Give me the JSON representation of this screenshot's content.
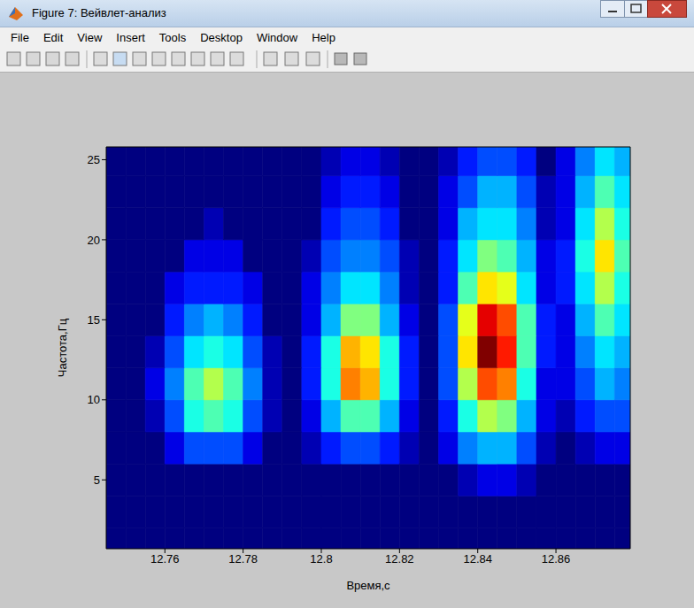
{
  "window": {
    "title": "Figure 7: Вейвлет-анализ",
    "menu": [
      "File",
      "Edit",
      "View",
      "Insert",
      "Tools",
      "Desktop",
      "Window",
      "Help"
    ]
  },
  "chart_data": {
    "type": "heatmap",
    "x_label": "Время,с",
    "y_label": "Частота,Гц",
    "xlim": [
      12.745,
      12.879
    ],
    "xticks": [
      12.76,
      12.78,
      12.8,
      12.82,
      12.84,
      12.86
    ],
    "ylim": [
      0.7,
      25.8
    ],
    "yticks": [
      5,
      10,
      15,
      20,
      25
    ],
    "grid": false,
    "color_range": [
      0,
      10
    ],
    "x_bins": [
      12.745,
      12.75,
      12.755,
      12.76,
      12.765,
      12.77,
      12.775,
      12.78,
      12.785,
      12.79,
      12.795,
      12.8,
      12.805,
      12.81,
      12.815,
      12.82,
      12.825,
      12.83,
      12.835,
      12.84,
      12.845,
      12.85,
      12.855,
      12.86,
      12.865,
      12.87,
      12.875,
      12.88
    ],
    "y_bins": [
      0,
      2,
      4,
      6,
      8,
      10,
      12,
      14,
      16,
      18,
      20,
      22,
      24,
      26
    ],
    "cells": [
      [
        0,
        0,
        0,
        0,
        0,
        0,
        0,
        0,
        0,
        0,
        0,
        0,
        0,
        0,
        0,
        0,
        0,
        0,
        0,
        0,
        0,
        0,
        0,
        0,
        0,
        0,
        0
      ],
      [
        0,
        0,
        0,
        0,
        0,
        0,
        0,
        0,
        0,
        0,
        0,
        0,
        0,
        0,
        0,
        0,
        0,
        0,
        0,
        0,
        0,
        0,
        0,
        0,
        0,
        0,
        0
      ],
      [
        0,
        0,
        0,
        0,
        0,
        0,
        0,
        0,
        0,
        0,
        0,
        0,
        0,
        0,
        0,
        0,
        0,
        0,
        0.5,
        1,
        1,
        0.5,
        0,
        0,
        0,
        0,
        0
      ],
      [
        0,
        0,
        0,
        1,
        2,
        2,
        2,
        1,
        0,
        0,
        0.5,
        1.5,
        2,
        2,
        1.5,
        0.5,
        0,
        1,
        2.5,
        3,
        3,
        2,
        0.5,
        0,
        0.5,
        1,
        1
      ],
      [
        0,
        0,
        0.5,
        2,
        4,
        4.5,
        4,
        2,
        0.5,
        0,
        1,
        3,
        4.5,
        4.5,
        3,
        1,
        0,
        1.5,
        4,
        5.5,
        5,
        3,
        1,
        0.5,
        1.5,
        2,
        2
      ],
      [
        0,
        0,
        1,
        2.5,
        4.5,
        5.5,
        4.5,
        2.5,
        0.5,
        0,
        1.5,
        4,
        7.5,
        7,
        4,
        1.5,
        0,
        2,
        5.5,
        8,
        7.5,
        4,
        1,
        1,
        2,
        3,
        2.5
      ],
      [
        0,
        0,
        0.5,
        2,
        3.5,
        4,
        3.5,
        2,
        0.5,
        0,
        1.5,
        4,
        7,
        6.5,
        4,
        1.5,
        0,
        2,
        6.5,
        10,
        8.5,
        4.5,
        1.5,
        1,
        2.5,
        3.5,
        3
      ],
      [
        0,
        0,
        0,
        1.5,
        2.5,
        3,
        2.5,
        1.5,
        0,
        0,
        1,
        3,
        5,
        5,
        3,
        1,
        0,
        2,
        6,
        9,
        8,
        4.5,
        1.5,
        1,
        3,
        4.5,
        3.5
      ],
      [
        0,
        0,
        0,
        1,
        1.5,
        1.5,
        1.5,
        1,
        0,
        0,
        1,
        2.5,
        3.5,
        3.5,
        2.5,
        0.5,
        0,
        1.5,
        4.5,
        6.5,
        6,
        3.5,
        1,
        1.5,
        3.5,
        5.5,
        4
      ],
      [
        0,
        0,
        0,
        0,
        1,
        1,
        1,
        0,
        0,
        0,
        0.5,
        2,
        2.5,
        2.5,
        2,
        0.5,
        0,
        1.5,
        3.5,
        5,
        4.5,
        3,
        1,
        1.5,
        4,
        6.5,
        4.5
      ],
      [
        0,
        0,
        0,
        0,
        0,
        0.5,
        0,
        0,
        0,
        0,
        0,
        1.5,
        2,
        2,
        1.5,
        0,
        0,
        1,
        3,
        3.5,
        3.5,
        2.5,
        0.5,
        1,
        3.5,
        5.5,
        4
      ],
      [
        0,
        0,
        0,
        0,
        0,
        0,
        0,
        0,
        0,
        0,
        0,
        1,
        1.5,
        1.5,
        1,
        0,
        0,
        1,
        2,
        3,
        3,
        2,
        0.5,
        1,
        3,
        4.5,
        3.5
      ],
      [
        0,
        0,
        0,
        0,
        0,
        0,
        0,
        0,
        0,
        0,
        0,
        0.5,
        1,
        1,
        0.5,
        0,
        0,
        0.5,
        1.5,
        2,
        2,
        1.5,
        0,
        1,
        2.5,
        3.5,
        3
      ]
    ]
  }
}
